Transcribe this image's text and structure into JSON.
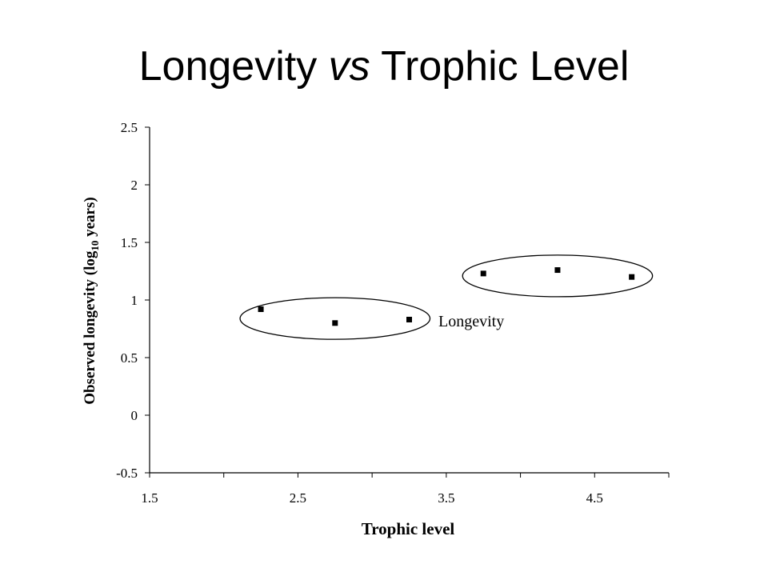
{
  "slide": {
    "title_part1": "Longevity ",
    "title_italic": "vs",
    "title_part2": " Trophic Level"
  },
  "chart_data": {
    "type": "scatter",
    "title": "",
    "xlabel": "Trophic level",
    "ylabel": "Observed longevity (log",
    "ylabel_subscript": "10",
    "ylabel_suffix": " years)",
    "xlim": [
      1.5,
      5.0
    ],
    "ylim": [
      -0.5,
      2.5
    ],
    "xticks": [
      1.5,
      2.5,
      3.5,
      4.5
    ],
    "xtick_labels": [
      "1.5",
      "2.5",
      "3.5",
      "4.5"
    ],
    "xminor": [
      2.0,
      3.0,
      4.0,
      5.0
    ],
    "yticks": [
      -0.5,
      0,
      0.5,
      1,
      1.5,
      2,
      2.5
    ],
    "ytick_labels": [
      "-0.5",
      "0",
      "0.5",
      "1",
      "1.5",
      "2",
      "2.5"
    ],
    "grid": false,
    "series": [
      {
        "name": "Longevity",
        "marker": "square",
        "color": "#000000",
        "x": [
          2.25,
          2.75,
          3.25,
          3.75,
          4.25,
          4.75
        ],
        "y": [
          0.92,
          0.8,
          0.83,
          1.23,
          1.26,
          1.2
        ]
      }
    ],
    "legend": {
      "placement": "inside-center-right",
      "text": "Longevity"
    },
    "groupings": [
      {
        "label": "group-low",
        "x_range": [
          2.25,
          3.25
        ]
      },
      {
        "label": "group-high",
        "x_range": [
          3.75,
          4.75
        ]
      }
    ]
  }
}
